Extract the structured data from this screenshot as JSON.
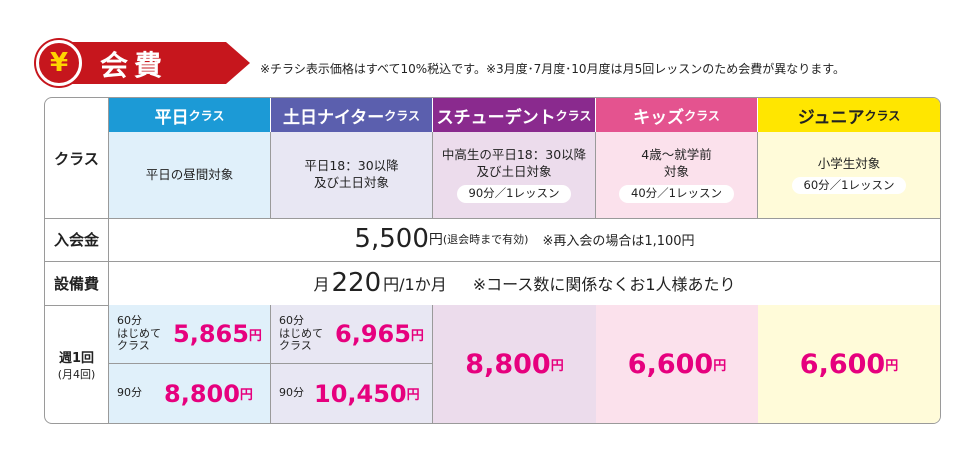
{
  "header": {
    "yen_symbol": "¥",
    "title": "会費",
    "note": "※チラシ表示価格はすべて10%税込です。※3月度･7月度･10月度は月5回レッスンのため会費が異なります。"
  },
  "rows": {
    "class_label": "クラス",
    "entry_label": "入会金",
    "equipment_label": "設備費",
    "weekly_label_1": "週1回",
    "weekly_label_2": "(月4回)"
  },
  "classes": [
    {
      "name_main": "平日",
      "name_suffix": "クラス",
      "target_1": "平日の昼間対象",
      "target_2": "",
      "pill": "",
      "color": "#1c9ad6",
      "bg": "#e0f0fa"
    },
    {
      "name_main": "土日ナイター",
      "name_suffix": "クラス",
      "target_1": "平日18：30以降",
      "target_2": "及び土日対象",
      "pill": "",
      "color": "#5b5fae",
      "bg": "#e8e7f3"
    },
    {
      "name_main": "スチューデント",
      "name_suffix": "クラス",
      "target_1": "中高生の平日18：30以降",
      "target_2": "及び土日対象",
      "pill": "90分／1レッスン",
      "color": "#8a2a8e",
      "bg": "#ecdcec"
    },
    {
      "name_main": "キッズ",
      "name_suffix": "クラス",
      "target_1": "4歳～就学前",
      "target_2": "対象",
      "pill": "40分／1レッスン",
      "color": "#e4538f",
      "bg": "#fbe1ec"
    },
    {
      "name_main": "ジュニア",
      "name_suffix": "クラス",
      "target_1": "小学生対象",
      "target_2": "",
      "pill": "60分／1レッスン",
      "color": "#ffe600",
      "bg": "#fffbd9"
    }
  ],
  "entry_fee": {
    "amount": "5,500",
    "unit": "円",
    "paren": "(退会時まで有効)",
    "extra": "※再入会の場合は1,100円"
  },
  "equipment_fee": {
    "prefix": "月",
    "amount": "220",
    "unit": "円/1か月",
    "note": "※コース数に関係なくお1人様あたり"
  },
  "weekly": {
    "heijitsu": {
      "top_label_1": "60分",
      "top_label_2": "はじめて",
      "top_label_3": "クラス",
      "top_price": "5,865",
      "bottom_label": "90分",
      "bottom_price": "8,800"
    },
    "donichi": {
      "top_label_1": "60分",
      "top_label_2": "はじめて",
      "top_label_3": "クラス",
      "top_price": "6,965",
      "bottom_label": "90分",
      "bottom_price": "10,450"
    },
    "student_price": "8,800",
    "kids_price": "6,600",
    "junior_price": "6,600",
    "yen": "円"
  }
}
